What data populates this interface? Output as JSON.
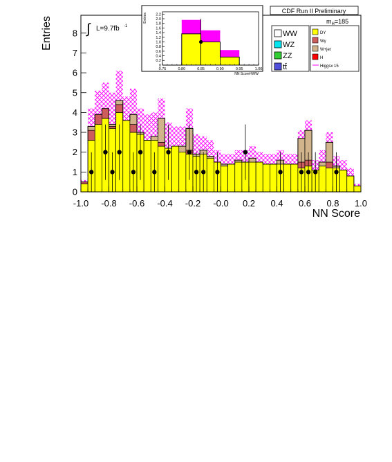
{
  "header": {
    "title": "CDF Run II Preliminary"
  },
  "lumi": {
    "integral": "∫",
    "text": "L=9.7fb",
    "exp": "-1"
  },
  "mass": {
    "prefix": "m",
    "sub": "H",
    "value": "=185"
  },
  "colors": {
    "WW": "#ffffff",
    "WZ": "#00e5ee",
    "ZZ": "#33cc33",
    "ttbar": "#5050d8",
    "DY": "#ffff00",
    "Wgamma": "#cd5c5c",
    "Wjet": "#d2b48c",
    "H": "#ff0000",
    "signal": "#ff00ff"
  },
  "legend": {
    "left": [
      {
        "key": "WW",
        "label": "WW"
      },
      {
        "key": "WZ",
        "label": "WZ"
      },
      {
        "key": "ZZ",
        "label": "ZZ"
      },
      {
        "key": "ttbar",
        "label": "tt̄"
      }
    ],
    "right": [
      {
        "key": "DY",
        "label": "DY"
      },
      {
        "key": "Wgamma",
        "label": "Wγ"
      },
      {
        "key": "Wjet",
        "label": "W+jet"
      },
      {
        "key": "H",
        "label": "H"
      },
      {
        "key": "signal",
        "label": "Higgsx 15",
        "style": "line"
      }
    ]
  },
  "chart_data": [
    {
      "type": "bar",
      "title": "",
      "xlabel": "NN Score",
      "ylabel": "Entries",
      "xlim": [
        -1.0,
        1.0
      ],
      "ylim": [
        0,
        8.9
      ],
      "xticks": [
        "-1.0",
        "-0.8",
        "-0.6",
        "-0.4",
        "-0.2",
        "-0.0",
        "0.2",
        "0.4",
        "0.6",
        "0.8",
        "1.0"
      ],
      "yticks": [
        "0",
        "1",
        "2",
        "3",
        "4",
        "5",
        "6",
        "7",
        "8"
      ],
      "bin_edges": [
        -1.0,
        -0.95,
        -0.9,
        -0.85,
        -0.8,
        -0.75,
        -0.7,
        -0.65,
        -0.6,
        -0.55,
        -0.5,
        -0.45,
        -0.4,
        -0.35,
        -0.3,
        -0.25,
        -0.2,
        -0.15,
        -0.1,
        -0.05,
        0.0,
        0.05,
        0.1,
        0.15,
        0.2,
        0.25,
        0.3,
        0.35,
        0.4,
        0.45,
        0.5,
        0.55,
        0.6,
        0.65,
        0.7,
        0.75,
        0.8,
        0.85,
        0.9,
        0.95,
        1.0
      ],
      "series": [
        {
          "name": "DY",
          "values": [
            0.4,
            2.6,
            3.4,
            3.7,
            3.2,
            4.0,
            3.6,
            3.0,
            2.9,
            2.6,
            2.6,
            2.3,
            2.2,
            2.3,
            2.0,
            1.9,
            1.8,
            1.9,
            1.7,
            1.5,
            1.3,
            1.4,
            1.5,
            1.5,
            1.5,
            1.5,
            1.4,
            1.4,
            1.4,
            1.4,
            1.4,
            1.2,
            1.3,
            1.1,
            1.3,
            1.2,
            1.2,
            1.1,
            0.8,
            0.3
          ]
        },
        {
          "name": "Wγ",
          "values": [
            0.1,
            0.5,
            0.5,
            0.5,
            0.1,
            0.4,
            0.0,
            0.4,
            0.0,
            0.0,
            0.0,
            0.2,
            0.0,
            0.0,
            0.0,
            0.2,
            0.0,
            0.0,
            0.0,
            0.0,
            0.0,
            0.0,
            0.0,
            0.0,
            0.0,
            0.0,
            0.0,
            0.0,
            0.0,
            0.0,
            0.0,
            0.3,
            0.3,
            0.0,
            0.0,
            0.3,
            0.0,
            0.0,
            0.0,
            0.0
          ]
        },
        {
          "name": "W+jet",
          "values": [
            0.0,
            0.2,
            0.0,
            0.0,
            0.1,
            0.2,
            0.0,
            0.5,
            0.1,
            0.0,
            0.2,
            1.2,
            0.0,
            0.0,
            0.3,
            1.1,
            0.1,
            0.2,
            0.1,
            0.0,
            0.1,
            0.0,
            0.1,
            0.0,
            0.2,
            0.0,
            0.0,
            0.0,
            0.2,
            0.0,
            0.0,
            1.2,
            1.5,
            0.0,
            0.2,
            1.0,
            0.1,
            0.0,
            0.0,
            0.0
          ]
        },
        {
          "name": "Higgsx 15",
          "values": [
            0.1,
            0.9,
            1.2,
            1.3,
            1.6,
            1.5,
            1.2,
            1.3,
            1.2,
            1.3,
            1.2,
            1.0,
            1.3,
            1.0,
            1.0,
            1.0,
            1.0,
            0.7,
            0.8,
            0.6,
            0.5,
            0.5,
            0.5,
            0.6,
            0.6,
            0.5,
            0.5,
            0.5,
            0.5,
            0.5,
            0.5,
            0.4,
            0.5,
            0.5,
            0.6,
            0.5,
            0.5,
            0.5,
            0.4,
            0.1
          ]
        }
      ],
      "data_points": {
        "name": "Data",
        "x": [
          -0.925,
          -0.825,
          -0.775,
          -0.725,
          -0.625,
          -0.575,
          -0.475,
          -0.375,
          -0.225,
          -0.175,
          -0.125,
          -0.025,
          0.175,
          0.425,
          0.575,
          0.625,
          0.675,
          0.825
        ],
        "y": [
          1,
          2,
          1,
          2,
          1,
          2,
          1,
          2,
          2,
          1,
          1,
          1,
          2,
          1,
          1,
          1,
          1,
          1
        ],
        "err": [
          1.0,
          1.4,
          1.0,
          1.4,
          1.0,
          1.4,
          1.0,
          1.4,
          1.4,
          1.0,
          1.0,
          1.0,
          1.4,
          1.0,
          1.0,
          1.0,
          1.0,
          1.0
        ]
      }
    },
    {
      "type": "bar",
      "title": "",
      "xlabel": "NN ScoreHWW",
      "ylabel": "Entries",
      "xlim": [
        0.75,
        1.0
      ],
      "ylim": [
        0,
        2.3
      ],
      "xticks": [
        "0.75",
        "0.80",
        "0.85",
        "0.90",
        "0.95",
        "1.00"
      ],
      "yticks": [
        "0",
        "0.2",
        "0.4",
        "0.6",
        "0.8",
        "1.0",
        "1.2",
        "1.4",
        "1.6",
        "1.8",
        "2.0",
        "2.2"
      ],
      "bin_edges": [
        0.75,
        0.8,
        0.85,
        0.9,
        0.95,
        1.0
      ],
      "series": [
        {
          "name": "DY",
          "values": [
            0.0,
            1.35,
            1.0,
            0.35,
            0.0
          ]
        },
        {
          "name": "Higgsx 15",
          "values": [
            0.0,
            0.6,
            0.5,
            0.3,
            0.0
          ]
        }
      ],
      "data_points": {
        "name": "Data",
        "x": [
          0.85
        ],
        "y": [
          1.0
        ],
        "err": [
          1.0
        ]
      }
    }
  ]
}
